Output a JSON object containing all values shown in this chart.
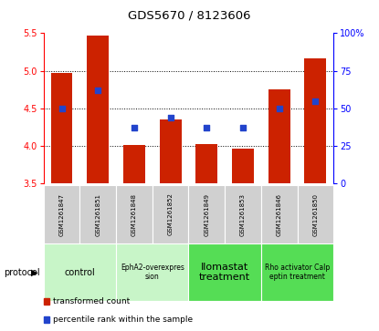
{
  "title": "GDS5670 / 8123606",
  "samples": [
    "GSM1261847",
    "GSM1261851",
    "GSM1261848",
    "GSM1261852",
    "GSM1261849",
    "GSM1261853",
    "GSM1261846",
    "GSM1261850"
  ],
  "transformed_counts": [
    4.97,
    5.47,
    4.01,
    4.35,
    4.03,
    3.96,
    4.75,
    5.17
  ],
  "percentile_ranks_pct": [
    50,
    62,
    37,
    44,
    37,
    37,
    50,
    55
  ],
  "protocol_groups": [
    {
      "label": "control",
      "start": 0,
      "end": 1,
      "color": "#c8f5c8",
      "font_size": 7
    },
    {
      "label": "EphA2-overexpres\nsion",
      "start": 2,
      "end": 3,
      "color": "#c8f5c8",
      "font_size": 5.5
    },
    {
      "label": "Ilomastat\ntreatment",
      "start": 4,
      "end": 5,
      "color": "#55dd55",
      "font_size": 8
    },
    {
      "label": "Rho activator Calp\neptin treatment",
      "start": 6,
      "end": 7,
      "color": "#55dd55",
      "font_size": 5.5
    }
  ],
  "ylim_left": [
    3.5,
    5.5
  ],
  "ylim_right": [
    0,
    100
  ],
  "yticks_left": [
    3.5,
    4.0,
    4.5,
    5.0,
    5.5
  ],
  "yticks_right": [
    0,
    25,
    50,
    75,
    100
  ],
  "ytick_labels_right": [
    "0",
    "25",
    "50",
    "75",
    "100%"
  ],
  "bar_color": "#cc2200",
  "dot_color": "#2244cc",
  "bar_bottom": 3.5,
  "grid_lines": [
    4.0,
    4.5,
    5.0
  ],
  "sample_bg_color": "#d0d0d0",
  "legend_items": [
    {
      "color": "#cc2200",
      "label": "transformed count"
    },
    {
      "color": "#2244cc",
      "label": "percentile rank within the sample"
    }
  ]
}
